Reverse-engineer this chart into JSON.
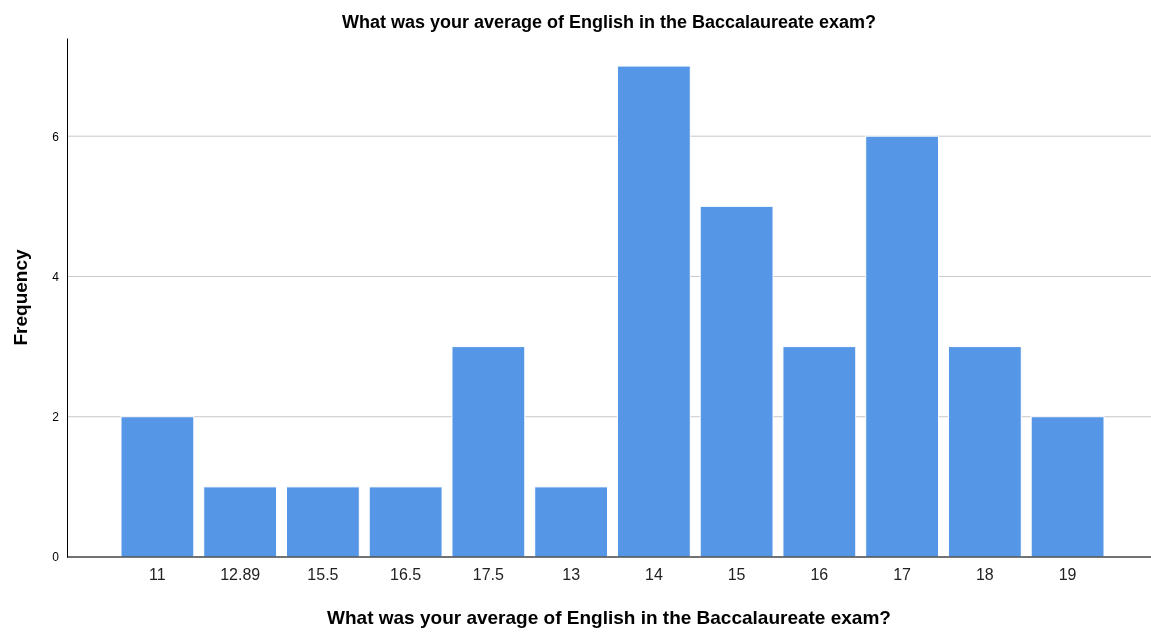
{
  "chart_data": {
    "type": "bar",
    "title": "What was your average of English in the Baccalaureate exam?",
    "xlabel": "What was your average of English in the Baccalaureate exam?",
    "ylabel": "Frequency",
    "categories": [
      "11",
      "12.89",
      "15.5",
      "16.5",
      "17.5",
      "13",
      "14",
      "15",
      "16",
      "17",
      "18",
      "19"
    ],
    "values": [
      2,
      1,
      1,
      1,
      3,
      1,
      7,
      5,
      3,
      6,
      3,
      2
    ],
    "color": "#5596e6",
    "ylim": [
      0,
      7.4
    ],
    "yticks": [
      0,
      2,
      4,
      6
    ],
    "grid": "y"
  }
}
